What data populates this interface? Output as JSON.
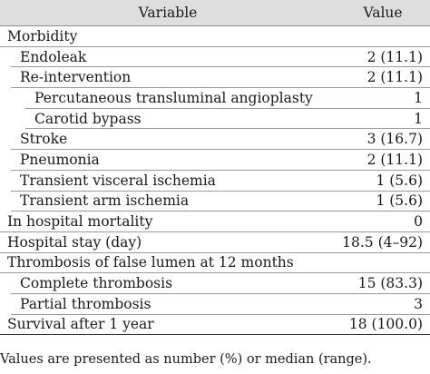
{
  "table": {
    "headers": {
      "variable": "Variable",
      "value": "Value"
    },
    "rows": [
      {
        "label": "Morbidity",
        "value": "",
        "level": 0
      },
      {
        "label": "Endoleak",
        "value": "2 (11.1)",
        "level": 1
      },
      {
        "label": "Re-intervention",
        "value": "2 (11.1)",
        "level": 1
      },
      {
        "label": "Percutaneous transluminal angioplasty",
        "value": "1",
        "level": 2
      },
      {
        "label": "Carotid bypass",
        "value": "1",
        "level": 2
      },
      {
        "label": "Stroke",
        "value": "3 (16.7)",
        "level": 1
      },
      {
        "label": "Pneumonia",
        "value": "2 (11.1)",
        "level": 1
      },
      {
        "label": "Transient visceral ischemia",
        "value": "1 (5.6)",
        "level": 1
      },
      {
        "label": "Transient arm ischemia",
        "value": "1 (5.6)",
        "level": 1
      },
      {
        "label": "In hospital mortality",
        "value": "0",
        "level": 0
      },
      {
        "label": "Hospital stay (day)",
        "value": "18.5 (4–92)",
        "level": 0
      },
      {
        "label": "Thrombosis of false lumen at 12 months",
        "value": "",
        "level": 0
      },
      {
        "label": "Complete thrombosis",
        "value": "15 (83.3)",
        "level": 1
      },
      {
        "label": "Partial thrombosis",
        "value": "3",
        "level": 1
      },
      {
        "label": "Survival after 1 year",
        "value": "18 (100.0)",
        "level": 0
      }
    ],
    "footnote": "Values are presented as number (%) or median (range)."
  }
}
